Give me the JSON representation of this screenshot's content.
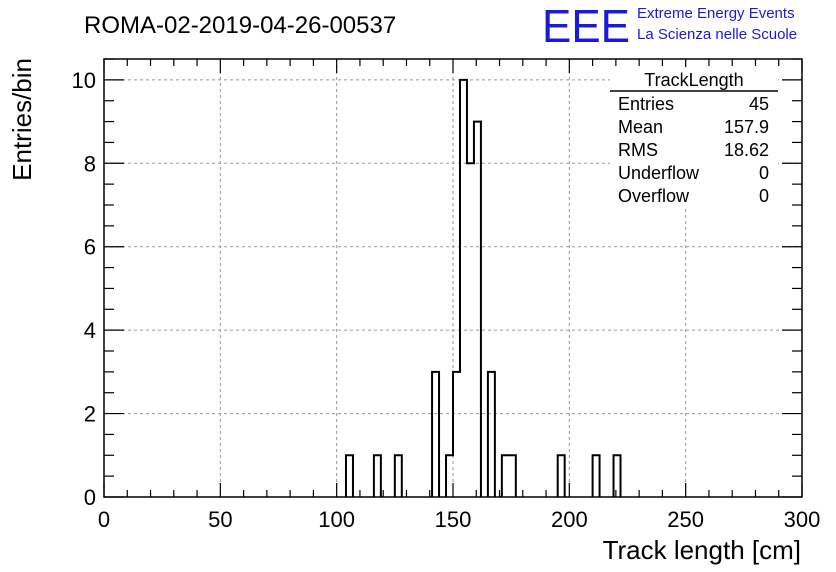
{
  "chart_data": {
    "type": "histogram",
    "title": "ROMA-02-2019-04-26-00537",
    "xlabel": "Track length [cm]",
    "ylabel": "Entries/bin",
    "xlim": [
      0,
      300
    ],
    "ylim": [
      0,
      10.5
    ],
    "x_ticks": [
      "0",
      "50",
      "100",
      "150",
      "200",
      "250",
      "300"
    ],
    "y_ticks": [
      "0",
      "2",
      "4",
      "6",
      "8",
      "10"
    ],
    "grid": true,
    "bins": [
      {
        "x0": 104,
        "x1": 107,
        "count": 1
      },
      {
        "x0": 116,
        "x1": 119,
        "count": 1
      },
      {
        "x0": 125,
        "x1": 128,
        "count": 1
      },
      {
        "x0": 141,
        "x1": 144,
        "count": 3
      },
      {
        "x0": 147,
        "x1": 150,
        "count": 1
      },
      {
        "x0": 150,
        "x1": 153,
        "count": 3
      },
      {
        "x0": 153,
        "x1": 156,
        "count": 10
      },
      {
        "x0": 156,
        "x1": 159,
        "count": 8
      },
      {
        "x0": 159,
        "x1": 162,
        "count": 9
      },
      {
        "x0": 165,
        "x1": 168,
        "count": 3
      },
      {
        "x0": 171,
        "x1": 174,
        "count": 1
      },
      {
        "x0": 174,
        "x1": 177,
        "count": 1
      },
      {
        "x0": 195,
        "x1": 198,
        "count": 1
      },
      {
        "x0": 210,
        "x1": 213,
        "count": 1
      },
      {
        "x0": 219,
        "x1": 222,
        "count": 1
      }
    ],
    "stats": {
      "title": "TrackLength",
      "rows": [
        {
          "label": "Entries",
          "value": "45"
        },
        {
          "label": "Mean",
          "value": "157.9"
        },
        {
          "label": "RMS",
          "value": "18.62"
        },
        {
          "label": "Underflow",
          "value": "0"
        },
        {
          "label": "Overflow",
          "value": "0"
        }
      ]
    }
  },
  "logo": {
    "mark": "EEE",
    "line1": "Extreme Energy Events",
    "line2": "La Scienza nelle Scuole",
    "color": "#1a1adc"
  }
}
